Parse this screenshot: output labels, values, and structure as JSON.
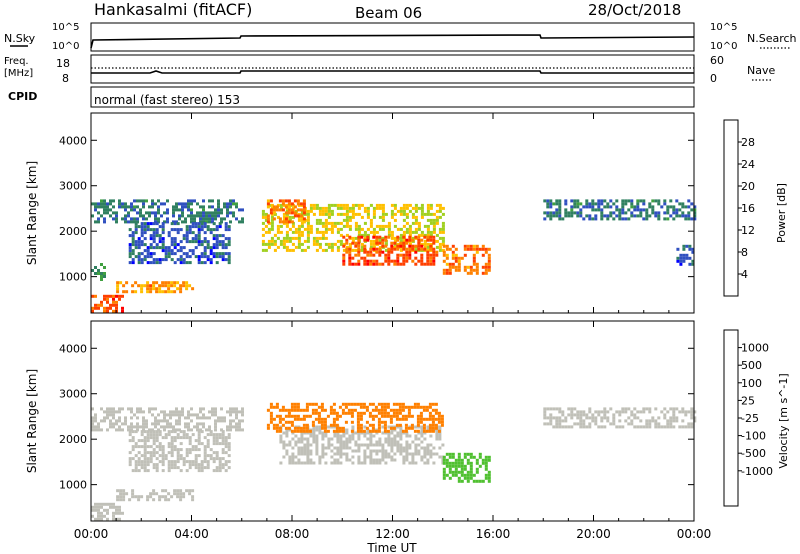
{
  "header": {
    "station": "Hankasalmi (fitACF)",
    "beam": "Beam 06",
    "date": "28/Oct/2018"
  },
  "strip_labels": {
    "nsky": "N.Sky",
    "nsky_ticks": [
      "10^5",
      "10^0"
    ],
    "nsearch": "N.Search",
    "nsearch_ticks": [
      "10^5",
      "10^0"
    ],
    "freq_line1": "Freq.",
    "freq_line2": "[MHz]",
    "freq_ticks": [
      "18",
      "8"
    ],
    "nave": "Nave",
    "nave_ticks": [
      "60",
      "0"
    ],
    "cpid": "CPID",
    "cpid_text": "normal (fast stereo) 153"
  },
  "colors": {
    "power_scale": [
      "#0000ff",
      "#3050c0",
      "#308060",
      "#40a040",
      "#a0d020",
      "#ffc000",
      "#ff8000",
      "#ff4000",
      "#ff0000"
    ],
    "velocity_scale": [
      "#ff0000",
      "#ff4000",
      "#ff8000",
      "#ffc000",
      "#c0c0b8",
      "#c0c0b8",
      "#50c030",
      "#308050",
      "#3060b0",
      "#2040ff"
    ],
    "ground_scatter": "#c0c0b8"
  },
  "chart_data": [
    {
      "type": "heatmap",
      "panel": "power",
      "ylabel": "Slant Range [km]",
      "yticks": [
        "1000",
        "2000",
        "3000",
        "4000"
      ],
      "ylim": [
        200,
        4600
      ],
      "colorbar_label": "Power [dB]",
      "colorbar_ticks": [
        "4",
        "8",
        "12",
        "16",
        "20",
        "24",
        "28"
      ],
      "colorbar_range": [
        0,
        32
      ],
      "regions": [
        {
          "t0": 0.0,
          "t1": 6.0,
          "r0": 2200,
          "r1": 2700,
          "v": 8
        },
        {
          "t0": 1.5,
          "t1": 5.5,
          "r0": 1300,
          "r1": 2200,
          "v": 6
        },
        {
          "t0": 0.0,
          "t1": 0.5,
          "r0": 900,
          "r1": 1300,
          "v": 10
        },
        {
          "t0": 1.0,
          "t1": 4.0,
          "r0": 650,
          "r1": 900,
          "v": 22
        },
        {
          "t0": 0.0,
          "t1": 1.2,
          "r0": 250,
          "r1": 600,
          "v": 26
        },
        {
          "t0": 6.8,
          "t1": 14.0,
          "r0": 1600,
          "r1": 2600,
          "v": 18
        },
        {
          "t0": 7.0,
          "t1": 8.5,
          "r0": 2200,
          "r1": 2700,
          "v": 24
        },
        {
          "t0": 10.0,
          "t1": 13.8,
          "r0": 1300,
          "r1": 1900,
          "v": 26
        },
        {
          "t0": 14.0,
          "t1": 15.8,
          "r0": 1100,
          "r1": 1700,
          "v": 24
        },
        {
          "t0": 18.0,
          "t1": 24.0,
          "r0": 2300,
          "r1": 2700,
          "v": 8
        },
        {
          "t0": 23.3,
          "t1": 24.0,
          "r0": 1300,
          "r1": 1700,
          "v": 6
        }
      ]
    },
    {
      "type": "heatmap",
      "panel": "velocity",
      "ylabel": "Slant Range [km]",
      "yticks": [
        "1000",
        "2000",
        "3000",
        "4000"
      ],
      "ylim": [
        200,
        4600
      ],
      "colorbar_label": "Velocity [m s^-1]",
      "colorbar_ticks": [
        "1000",
        "500",
        "100",
        "25",
        "-25",
        "-100",
        "-500",
        "-1000"
      ],
      "regions": [
        {
          "t0": 0.0,
          "t1": 6.0,
          "r0": 2200,
          "r1": 2700,
          "v": 0
        },
        {
          "t0": 1.5,
          "t1": 5.5,
          "r0": 1300,
          "r1": 2200,
          "v": 0
        },
        {
          "t0": 1.0,
          "t1": 4.0,
          "r0": 650,
          "r1": 900,
          "v": 0
        },
        {
          "t0": 0.0,
          "t1": 1.2,
          "r0": 250,
          "r1": 600,
          "v": 0
        },
        {
          "t0": 7.5,
          "t1": 14.0,
          "r0": 1500,
          "r1": 2300,
          "v": 0
        },
        {
          "t0": 7.0,
          "t1": 14.0,
          "r0": 2200,
          "r1": 2800,
          "v": -150
        },
        {
          "t0": 14.0,
          "t1": 15.8,
          "r0": 1100,
          "r1": 1700,
          "v": 60
        },
        {
          "t0": 18.0,
          "t1": 24.0,
          "r0": 2300,
          "r1": 2700,
          "v": 0
        }
      ]
    }
  ],
  "xaxis": {
    "label": "Time UT",
    "ticks": [
      "00:00",
      "04:00",
      "08:00",
      "12:00",
      "16:00",
      "20:00",
      "00:00"
    ],
    "range": [
      0,
      24
    ]
  }
}
